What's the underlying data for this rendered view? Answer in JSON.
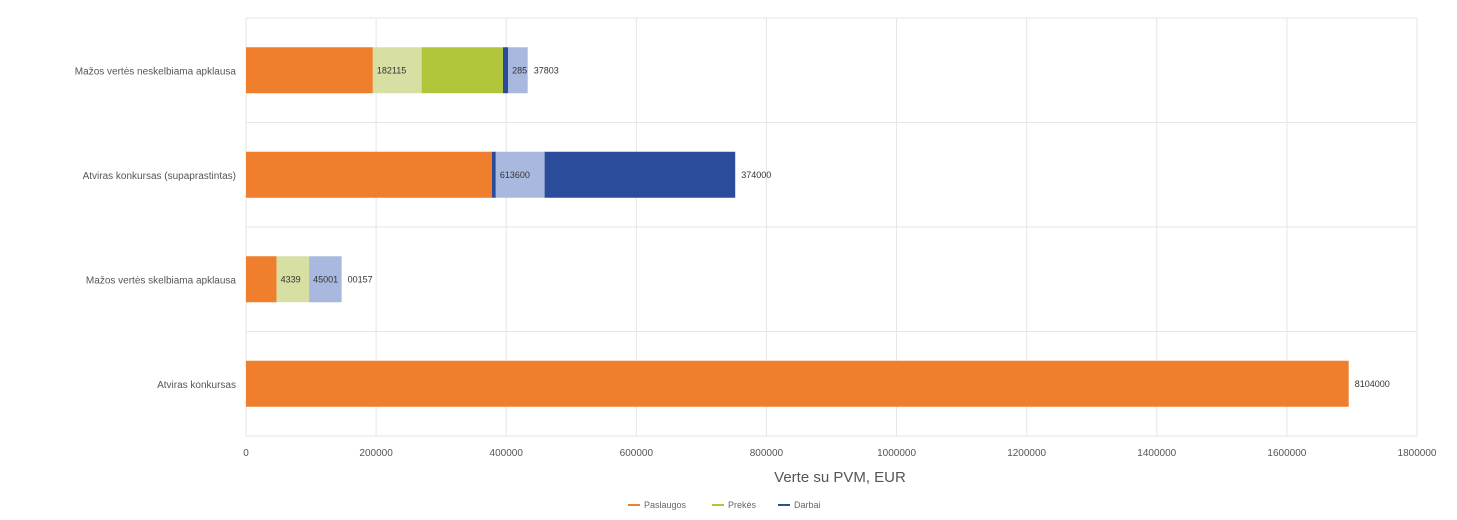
{
  "chart_data": {
    "type": "bar",
    "orientation": "horizontal",
    "stacked": true,
    "xlabel": "Verte su PVM, EUR",
    "ylabel": "",
    "xlim": [
      0,
      1800000
    ],
    "x_ticks": [
      "0",
      "200000",
      "400000",
      "600000",
      "800000",
      "1000000",
      "1200000",
      "1400000",
      "1600000",
      "1800000"
    ],
    "x_tick_values": [
      0,
      200000,
      400000,
      600000,
      800000,
      1000000,
      1200000,
      1400000,
      1600000,
      1800000
    ],
    "grid": true,
    "legend_position": "bottom",
    "categories": [
      "Mažos vertės neskelbiama apklausa",
      "Atviras konkursas (supaprastintas)",
      "Mažos vertės skelbiama apklausa",
      "Atviras konkursas"
    ],
    "segments": [
      [
        {
          "value": 195000,
          "color": "#ef7f2d"
        },
        {
          "value": 75000,
          "color": "#d7dfa3",
          "label": "182115"
        },
        {
          "value": 125000,
          "color": "#b2c43a"
        },
        {
          "value": 8000,
          "color": "#2b4c9b"
        },
        {
          "value": 30000,
          "color": "#a9b8de",
          "label": "285"
        },
        {
          "value": 0,
          "color": "#a9b8de",
          "label": "37803",
          "outside": true
        }
      ],
      [
        {
          "value": 378000,
          "color": "#ef7f2d"
        },
        {
          "value": 6000,
          "color": "#2b4c9b"
        },
        {
          "value": 75000,
          "color": "#a9b8de",
          "label": "613600"
        },
        {
          "value": 293000,
          "color": "#2b4c9b",
          "label": "374000",
          "outside": true
        }
      ],
      [
        {
          "value": 47000,
          "color": "#ef7f2d"
        },
        {
          "value": 50000,
          "color": "#d7dfa3",
          "label": "4339"
        },
        {
          "value": 50000,
          "color": "#a9b8de",
          "label": "45001"
        },
        {
          "value": 0,
          "color": "#a9b8de",
          "label": "00157",
          "outside": true
        }
      ],
      [
        {
          "value": 1695000,
          "color": "#ef7f2d",
          "label": "8104000",
          "outside": true
        }
      ]
    ],
    "legend": [
      {
        "name": "Paslaugos",
        "color": "#ef7f2d"
      },
      {
        "name": "Prekės",
        "color": "#b2c43a"
      },
      {
        "name": "Darbai",
        "color": "#2b4c9b"
      }
    ]
  }
}
